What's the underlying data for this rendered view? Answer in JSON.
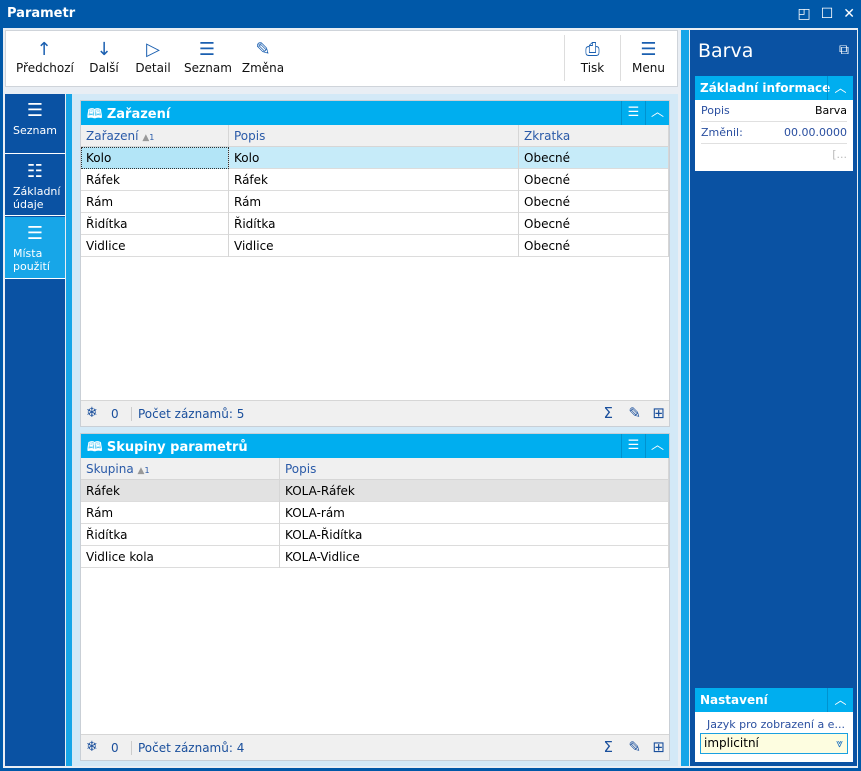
{
  "window": {
    "title": "Parametr"
  },
  "toolbar": {
    "items": [
      {
        "label": "Předchozí",
        "icon": "arrow-up-icon"
      },
      {
        "label": "Další",
        "icon": "arrow-down-icon"
      },
      {
        "label": "Detail",
        "icon": "play-icon"
      },
      {
        "label": "Seznam",
        "icon": "list-icon"
      },
      {
        "label": "Změna",
        "icon": "pencil-icon"
      }
    ],
    "print": "Tisk",
    "menu": "Menu"
  },
  "nav": {
    "items": [
      {
        "label": "Seznam"
      },
      {
        "label": "Základní údaje"
      },
      {
        "label": "Místa použití",
        "selected": true
      }
    ]
  },
  "grid1": {
    "title": "Zařazení",
    "columns": [
      "Zařazení",
      "Popis",
      "Zkratka"
    ],
    "sort": "1",
    "rows": [
      [
        "Kolo",
        "Kolo",
        "Obecné"
      ],
      [
        "Ráfek",
        "Ráfek",
        "Obecné"
      ],
      [
        "Rám",
        "Rám",
        "Obecné"
      ],
      [
        "Řidítka",
        "Řidítka",
        "Obecné"
      ],
      [
        "Vidlice",
        "Vidlice",
        "Obecné"
      ]
    ],
    "filter_count": "0",
    "record_count": "Počet záznamů: 5"
  },
  "grid2": {
    "title": "Skupiny parametrů",
    "columns": [
      "Skupina",
      "Popis"
    ],
    "sort": "1",
    "rows": [
      [
        "Ráfek",
        "KOLA-Ráfek"
      ],
      [
        "Rám",
        "KOLA-rám"
      ],
      [
        "Řidítka",
        "KOLA-Řidítka"
      ],
      [
        "Vidlice kola",
        "KOLA-Vidlice"
      ]
    ],
    "filter_count": "0",
    "record_count": "Počet záznamů: 4"
  },
  "right": {
    "title": "Barva",
    "basic": {
      "title": "Základní informace",
      "popis_label": "Popis",
      "popis_value": "Barva",
      "zmenil_label": "Změnil:",
      "zmenil_value": "00.00.0000",
      "more": "[..."
    },
    "settings": {
      "title": "Nastavení",
      "lang_label": "Jazyk pro zobrazení a e...",
      "lang_value": "implicitní"
    }
  },
  "colors": {
    "title_bar": "#0058a8",
    "header": "#00aeef",
    "selected_row": "#c6ebf9"
  }
}
